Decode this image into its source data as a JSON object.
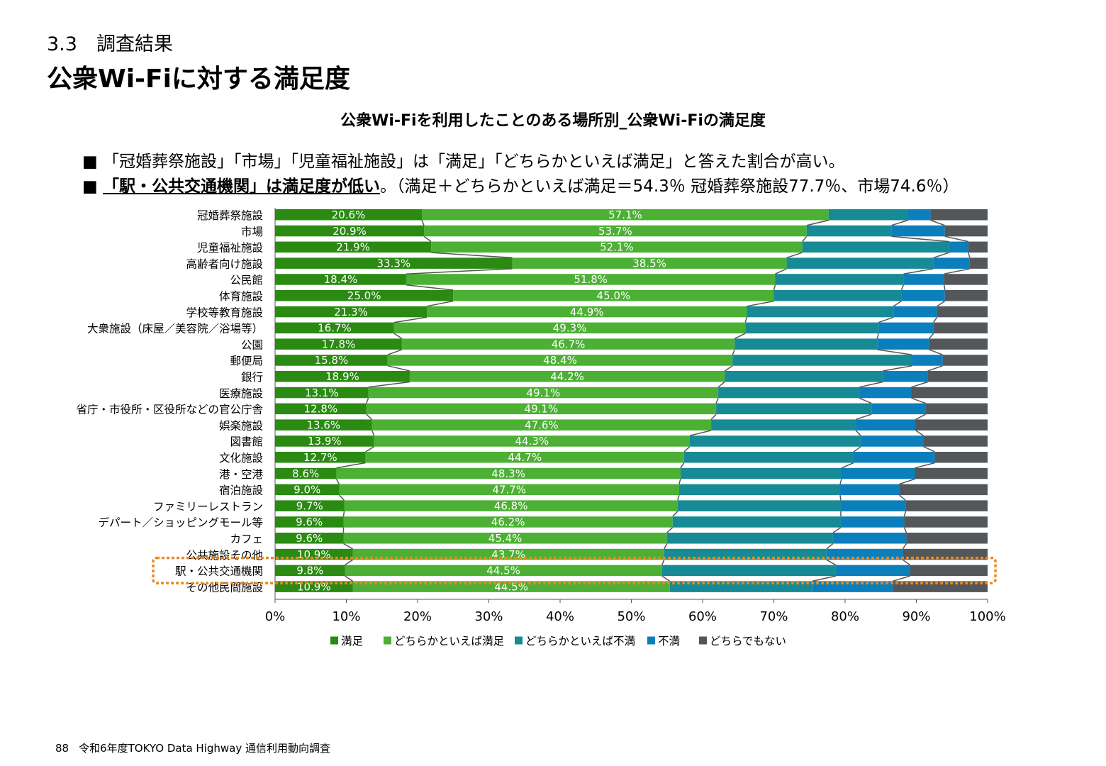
{
  "header": {
    "section": "3.3　調査結果",
    "title": "公衆Wi-Fiに対する満足度"
  },
  "bullets": [
    {
      "marker": "■ ",
      "text": "「冠婚葬祭施設」「市場」「児童福祉施設」は「満足」「どちらかといえば満足」と答えた割合が高い。"
    },
    {
      "marker": "■ ",
      "emph": "「駅・公共交通機関」は満足度が低い",
      "text": "。（満足＋どちらかといえば満足＝54.3％ 冠婚葬祭施設77.7％、市場74.6％）"
    }
  ],
  "footer": {
    "page": "88",
    "text": "令和6年度TOKYO Data Highway 通信利用動向調査"
  },
  "highlight": {
    "category": "駅・公共交通機関",
    "color": "#e9881e"
  },
  "chart_data": {
    "type": "bar",
    "orientation": "horizontal",
    "stacked": "percent",
    "title": "公衆Wi-Fiを利用したことのある場所別_公衆Wi-Fiの満足度",
    "categories": [
      "冠婚葬祭施設",
      "市場",
      "児童福祉施設",
      "高齢者向け施設",
      "公民館",
      "体育施設",
      "学校等教育施設",
      "大衆施設（床屋／美容院／浴場等）",
      "公園",
      "郵便局",
      "銀行",
      "医療施設",
      "省庁・市役所・区役所などの官公庁舎",
      "娯楽施設",
      "図書館",
      "文化施設",
      "港・空港",
      "宿泊施設",
      "ファミリーレストラン",
      "デパート／ショッピングモール等",
      "カフェ",
      "公共施設その他",
      "駅・公共交通機関",
      "その他民間施設"
    ],
    "series": [
      {
        "name": "満足",
        "color": "#2a8a12",
        "values": [
          20.6,
          20.9,
          21.9,
          33.3,
          18.4,
          25.0,
          21.3,
          16.7,
          17.8,
          15.8,
          18.9,
          13.1,
          12.8,
          13.6,
          13.9,
          12.7,
          8.6,
          9.0,
          9.7,
          9.6,
          9.6,
          10.9,
          9.8,
          10.9
        ],
        "labels": [
          "20.6%",
          "20.9%",
          "21.9%",
          "33.3%",
          "18.4%",
          "25.0%",
          "21.3%",
          "16.7%",
          "17.8%",
          "15.8%",
          "18.9%",
          "13.1%",
          "12.8%",
          "13.6%",
          "13.9%",
          "12.7%",
          "8.6%",
          "9.0%",
          "9.7%",
          "9.6%",
          "9.6%",
          "10.9%",
          "9.8%",
          "10.9%"
        ]
      },
      {
        "name": "どちらかといえば満足",
        "color": "#4cb034",
        "values": [
          57.1,
          53.7,
          52.1,
          38.5,
          51.8,
          45.0,
          44.9,
          49.3,
          46.7,
          48.4,
          44.2,
          49.1,
          49.1,
          47.6,
          44.3,
          44.7,
          48.3,
          47.7,
          46.8,
          46.2,
          45.4,
          43.7,
          44.5,
          44.5
        ],
        "labels": [
          "57.1%",
          "53.7%",
          "52.1%",
          "38.5%",
          "51.8%",
          "45.0%",
          "44.9%",
          "49.3%",
          "46.7%",
          "48.4%",
          "44.2%",
          "49.1%",
          "49.1%",
          "47.6%",
          "44.3%",
          "44.7%",
          "48.3%",
          "47.7%",
          "46.8%",
          "46.2%",
          "45.4%",
          "43.7%",
          "44.5%",
          "44.5%"
        ]
      },
      {
        "name": "どちらかといえば不満",
        "color": "#168a95",
        "values": [
          11.1,
          11.9,
          20.6,
          20.6,
          18.0,
          17.9,
          20.6,
          18.7,
          20.0,
          25.2,
          22.2,
          19.8,
          21.8,
          20.3,
          24.0,
          23.8,
          22.6,
          22.6,
          22.9,
          23.6,
          23.3,
          22.8,
          24.4,
          20.0
        ],
        "labels": []
      },
      {
        "name": "不満",
        "color": "#0b7fbc",
        "values": [
          3.2,
          7.5,
          2.7,
          5.1,
          5.7,
          6.1,
          6.1,
          7.7,
          7.3,
          4.3,
          6.3,
          7.3,
          7.6,
          8.4,
          8.8,
          11.4,
          10.3,
          8.3,
          9.1,
          8.9,
          10.3,
          10.7,
          10.4,
          11.3
        ],
        "labels": []
      },
      {
        "name": "どちらでもない",
        "color": "#53575a",
        "values": [
          8.0,
          6.0,
          2.7,
          2.5,
          6.1,
          6.0,
          7.1,
          7.6,
          8.2,
          6.3,
          8.4,
          10.7,
          8.7,
          10.1,
          9.0,
          7.4,
          10.2,
          12.4,
          11.5,
          11.7,
          11.4,
          11.9,
          10.9,
          13.3
        ],
        "labels": []
      }
    ],
    "xlim": [
      0,
      100
    ],
    "xticks": [
      "0%",
      "10%",
      "20%",
      "30%",
      "40%",
      "50%",
      "60%",
      "70%",
      "80%",
      "90%",
      "100%"
    ],
    "series_lines": true,
    "legend": "bottom"
  }
}
